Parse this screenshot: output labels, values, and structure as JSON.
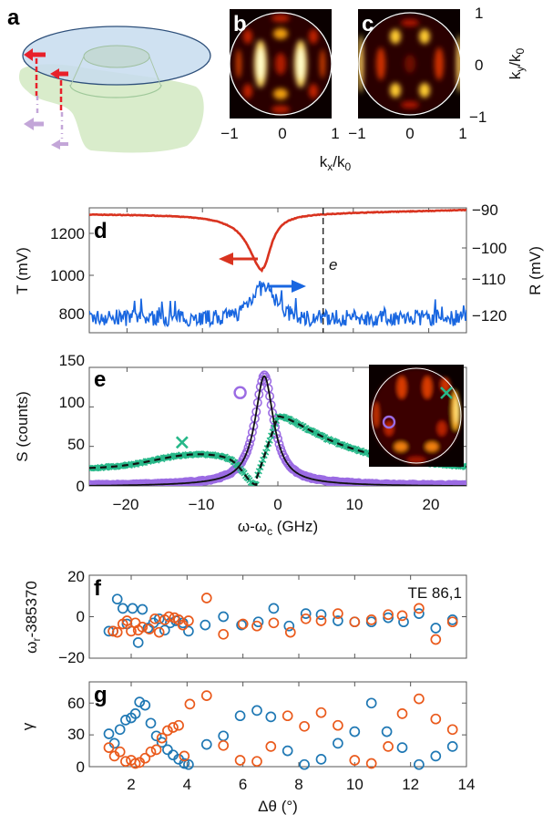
{
  "figure": {
    "panel_labels": {
      "a": "a",
      "b": "b",
      "c": "c",
      "d": "d",
      "e": "e",
      "f": "f",
      "g": "g"
    },
    "colors": {
      "red": "#d9331f",
      "blue": "#1866e0",
      "purple": "#9b6be3",
      "green": "#27b889",
      "black": "#111111",
      "orange_marker": "#ea5a1c",
      "blue_marker": "#1f78b4",
      "disk_fill": "#c7dcef",
      "disk_stroke": "#2d4f7a",
      "shadow_fill": "#d7ebc8",
      "arrow_purple": "#c3a6d8"
    }
  },
  "chart_data": [
    {
      "panel": "a",
      "type": "diagram",
      "description": "Schematic of a disk resonator on a tapered pedestal with red emission arrows and purple projected arrows"
    },
    {
      "panel": "b",
      "type": "heatmap",
      "title": "",
      "xlabel": "k_x/k_0",
      "x_ticks": [
        "−1",
        "0",
        "1"
      ],
      "xlim": [
        -1,
        1
      ],
      "ylim": [
        -1,
        1
      ],
      "colormap": "hot"
    },
    {
      "panel": "c",
      "type": "heatmap",
      "xlabel": "k_x/k_0",
      "ylabel": "k_y/k_0",
      "x_ticks": [
        "−1",
        "0",
        "1"
      ],
      "y_ticks": [
        "1",
        "0",
        "−1"
      ],
      "xlim": [
        -1,
        1
      ],
      "ylim": [
        -1,
        1
      ],
      "colormap": "hot"
    },
    {
      "panel": "d",
      "type": "line",
      "ylabel_left": "T (mV)",
      "ylabel_right": "R (mV)",
      "left_ticks": [
        800,
        1000,
        1200
      ],
      "right_ticks": [
        -90,
        -100,
        -110,
        -120
      ],
      "left_ylim": [
        730,
        1340
      ],
      "right_ylim": [
        -123,
        -89.5
      ],
      "xlim": [
        -25,
        25
      ],
      "marker_line_label": "e",
      "marker_line_x": 6,
      "series": [
        {
          "name": "T",
          "axis": "left",
          "baseline": 1310,
          "dip_center": -2,
          "dip_min": 1045,
          "dip_width": 2.2,
          "color": "red"
        },
        {
          "name": "R",
          "axis": "right",
          "baseline": -119,
          "peak_center": -2,
          "peak_max": -111,
          "noise": 2.2,
          "color": "blue"
        }
      ]
    },
    {
      "panel": "e",
      "type": "line",
      "xlabel": "ω-ωc (GHz)",
      "ylabel": "S (counts)",
      "x_ticks": [
        -20,
        -10,
        0,
        10,
        20
      ],
      "y_ticks": [
        0,
        50,
        100,
        150
      ],
      "xlim": [
        -25,
        25
      ],
      "ylim": [
        0,
        150
      ],
      "series": [
        {
          "name": "purple circles (data)",
          "style": "marker-o",
          "lorentz_center": -1.8,
          "lorentz_amp": 137,
          "lorentz_hwhm": 1.5,
          "offset": 0,
          "color": "purple"
        },
        {
          "name": "black fit",
          "style": "solid",
          "lorentz_center": -1.8,
          "lorentz_amp": 136,
          "lorentz_hwhm": 1.5,
          "color": "black"
        },
        {
          "name": "green crosses (data)",
          "style": "marker-x",
          "fano_center": -2.6,
          "color": "green"
        },
        {
          "name": "black dashed fit",
          "style": "dashed",
          "color": "black"
        }
      ],
      "annotations": [
        {
          "marker": "o",
          "x": -5,
          "y": 118,
          "color": "purple"
        },
        {
          "marker": "x",
          "x": -12.7,
          "y": 55,
          "color": "green"
        }
      ],
      "inset": {
        "type": "heatmap",
        "markers": [
          "o (purple, left)",
          "x (green, upper right)"
        ]
      }
    },
    {
      "panel": "f",
      "type": "scatter",
      "ylabel": "ωr-385370",
      "y_ticks": [
        20,
        0,
        -20
      ],
      "ylim": [
        -20,
        20
      ],
      "xlim": [
        0.5,
        14
      ],
      "annotation": "TE 86,1",
      "series": [
        {
          "name": "blue",
          "color": "blue_marker",
          "x": [
            1.2,
            1.35,
            1.5,
            1.7,
            1.85,
            2.05,
            2.25,
            2.4,
            2.6,
            2.8,
            3.0,
            3.2,
            3.4,
            3.6,
            3.85,
            4.05,
            4.65,
            5.3,
            5.95,
            6.55,
            7.1,
            7.65,
            8.25,
            8.8,
            9.4,
            10.0,
            10.6,
            11.2,
            11.75,
            12.3,
            12.9,
            13.5
          ],
          "y": [
            -7,
            -7,
            8.5,
            4,
            -3.5,
            4,
            -12.5,
            3.5,
            -5.5,
            -3,
            -1,
            -6.5,
            -3,
            -2,
            -3,
            -7,
            -4,
            0,
            -4,
            -2.5,
            4,
            -4.5,
            1.5,
            1,
            -2,
            -2.5,
            -2.5,
            -0.5,
            -2.5,
            1.5,
            -5.5,
            -1.5
          ]
        },
        {
          "name": "orange",
          "color": "orange_marker",
          "x": [
            1.35,
            1.5,
            1.7,
            1.85,
            2.0,
            2.15,
            2.25,
            2.4,
            2.65,
            2.85,
            3.0,
            3.2,
            3.35,
            3.55,
            3.7,
            3.85,
            4.05,
            4.7,
            5.3,
            6.0,
            6.5,
            7.1,
            7.7,
            8.25,
            8.8,
            9.4,
            10.0,
            10.6,
            11.2,
            11.7,
            12.3,
            12.9,
            13.5
          ],
          "y": [
            -7,
            -7.5,
            -3.5,
            -2,
            -7,
            -3,
            -6.5,
            -5,
            -6,
            -1,
            -7.5,
            -1.5,
            0,
            -0.5,
            -1.5,
            -4,
            -2,
            9,
            -8.5,
            -3.5,
            -4.5,
            -3,
            -7.5,
            -1,
            -2,
            1.5,
            -2.5,
            -1.5,
            1,
            0.5,
            4,
            -11,
            -2.5
          ]
        }
      ]
    },
    {
      "panel": "g",
      "type": "scatter",
      "xlabel": "Δθ (°)",
      "ylabel": "γ",
      "x_ticks": [
        2,
        4,
        6,
        8,
        10,
        12,
        14
      ],
      "y_ticks": [
        0,
        30,
        60
      ],
      "xlim": [
        0.5,
        14
      ],
      "ylim": [
        0,
        80
      ],
      "series": [
        {
          "name": "blue",
          "color": "blue_marker",
          "x": [
            1.2,
            1.4,
            1.6,
            1.8,
            2.0,
            2.15,
            2.3,
            2.5,
            2.7,
            2.9,
            3.1,
            3.3,
            3.5,
            3.7,
            3.9,
            4.05,
            4.7,
            5.3,
            5.9,
            6.5,
            7.0,
            7.6,
            8.2,
            8.8,
            9.4,
            10.0,
            10.6,
            11.15,
            11.7,
            12.3,
            12.9,
            13.5
          ],
          "y": [
            31,
            22,
            35,
            44,
            46,
            50,
            61,
            58,
            41,
            29,
            23,
            16,
            11,
            7,
            3,
            2,
            21,
            29,
            48,
            53,
            47,
            15,
            2,
            7,
            22,
            33,
            60,
            33,
            18,
            2,
            10,
            19
          ]
        },
        {
          "name": "orange",
          "color": "orange_marker",
          "x": [
            1.2,
            1.4,
            1.6,
            1.8,
            2.0,
            2.15,
            2.3,
            2.5,
            2.7,
            2.9,
            3.1,
            3.3,
            3.5,
            3.7,
            3.9,
            4.1,
            4.7,
            5.3,
            5.9,
            6.5,
            7.0,
            7.6,
            8.2,
            8.8,
            9.4,
            10.0,
            10.6,
            11.2,
            11.7,
            12.3,
            12.9,
            13.5
          ],
          "y": [
            18,
            10,
            14,
            5,
            6,
            3,
            4,
            8,
            14,
            16,
            27,
            34,
            37,
            39,
            10,
            59,
            67,
            20,
            6,
            5,
            19,
            48,
            38,
            51,
            39,
            6,
            3,
            19,
            50,
            64,
            45,
            35
          ]
        }
      ]
    }
  ],
  "text": {
    "b_x_ticks": [
      "−1",
      "0",
      "1"
    ],
    "c_x_ticks": [
      "−1",
      "0",
      "1"
    ],
    "c_y_ticks": [
      "1",
      "0",
      "−1"
    ],
    "bc_xlabel_main": "k",
    "bc_xlabel_sub1": "x",
    "bc_xlabel_slash": "/k",
    "bc_xlabel_sub2": "0",
    "c_ylabel_main": "k",
    "c_ylabel_sub1": "y",
    "c_ylabel_slash": "/k",
    "c_ylabel_sub2": "0",
    "d_ylabel_left": "T (mV)",
    "d_ylabel_right": "R (mV)",
    "d_left_ticks": [
      "1200",
      "1000",
      "800"
    ],
    "d_right_ticks": [
      "−90",
      "−100",
      "−110",
      "−120"
    ],
    "d_marker_label": "e",
    "e_ylabel": "S (counts)",
    "e_y_ticks": [
      "150",
      "100",
      "50",
      "0"
    ],
    "e_x_ticks": [
      "−20",
      "−10",
      "0",
      "10",
      "20"
    ],
    "e_xlabel_a": "ω-ω",
    "e_xlabel_sub": "c",
    "e_xlabel_b": " (GHz)",
    "f_ylabel_a": "ω",
    "f_ylabel_sub": "r",
    "f_ylabel_b": "-385370",
    "f_y_ticks": [
      "20",
      "0",
      "−20"
    ],
    "f_annotation": "TE 86,1",
    "g_ylabel": "γ",
    "g_y_ticks": [
      "60",
      "30",
      "0"
    ],
    "g_x_ticks": [
      "2",
      "4",
      "6",
      "8",
      "10",
      "12",
      "14"
    ],
    "g_xlabel": "Δθ (°)"
  }
}
